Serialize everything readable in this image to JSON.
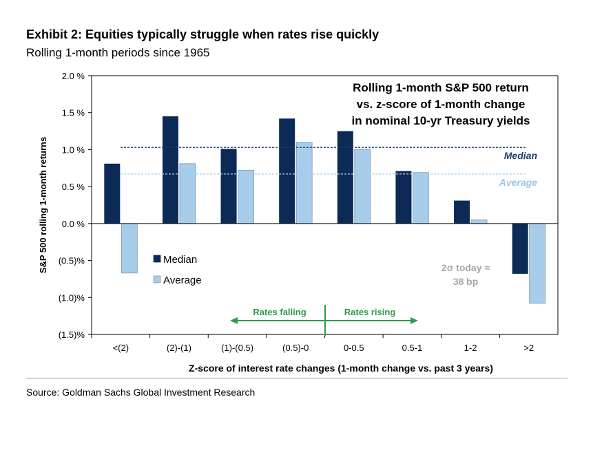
{
  "title": "Exhibit 2: Equities typically struggle when rates rise quickly",
  "subtitle": "Rolling 1-month periods since 1965",
  "source": "Source: Goldman Sachs Global Investment Research",
  "chart_data": {
    "type": "bar",
    "inner_title": [
      "Rolling 1-month S&P 500 return",
      "vs. z-score of 1-month change",
      "in nominal 10-yr Treasury yields"
    ],
    "xlabel": "Z-score of interest rate changes (1-month change vs. past 3 years)",
    "ylabel": "S&P 500 rolling 1-month returns",
    "categories": [
      "<(2)",
      "(2)-(1)",
      "(1)-(0.5)",
      "(0.5)-0",
      "0-0.5",
      "0.5-1",
      "1-2",
      ">2"
    ],
    "ylim": [
      -1.5,
      2.0
    ],
    "yticks": [
      2.0,
      1.5,
      1.0,
      0.5,
      0.0,
      -0.5,
      -1.0,
      -1.5
    ],
    "ytick_labels": [
      "2.0 %",
      "1.5 %",
      "1.0 %",
      "0.5 %",
      "0.0 %",
      "(0.5)%",
      "(1.0)%",
      "(1.5)%"
    ],
    "series": [
      {
        "name": "Median",
        "color": "#0b2a55",
        "values": [
          0.81,
          1.45,
          1.01,
          1.42,
          1.25,
          0.71,
          0.31,
          -0.68
        ]
      },
      {
        "name": "Average",
        "color": "#a7cdeb",
        "values": [
          -0.67,
          0.81,
          0.72,
          1.1,
          1.0,
          0.69,
          0.05,
          -1.08
        ]
      }
    ],
    "reference_lines": [
      {
        "name": "Median",
        "value": 1.03,
        "color": "#1f3d6e",
        "style": "dashed"
      },
      {
        "name": "Average",
        "value": 0.67,
        "color": "#a7cdeb",
        "style": "dashed"
      }
    ],
    "annotations": {
      "rates_falling": "Rates falling",
      "rates_rising": "Rates rising",
      "sigma_today": [
        "2σ today ≈",
        "38 bp"
      ],
      "arrow_color": "#2e9a4a",
      "note_color": "#a6a6a6"
    },
    "legend": {
      "placement": "center-left"
    },
    "grid": false
  }
}
